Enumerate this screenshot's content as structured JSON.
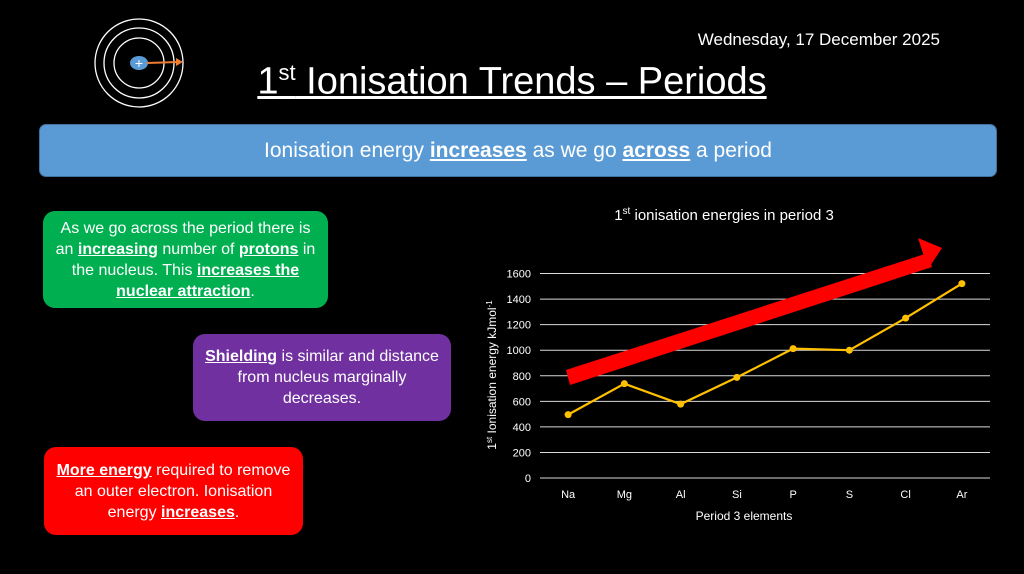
{
  "date": "Wednesday, 17 December 2025",
  "title": {
    "prefix": "1",
    "sup": "st",
    "rest": " Ionisation Trends – Periods"
  },
  "banner": {
    "t1": "Ionisation energy ",
    "b1": "increases",
    "t2": " as we go ",
    "b2": "across",
    "t3": " a period"
  },
  "green_box": {
    "t1": "As we go across the period there is an ",
    "b1": "increasing",
    "t2": " number of ",
    "b2": "protons",
    "t3": " in the nucleus. This ",
    "b3": "increases the nuclear attraction",
    "t4": "."
  },
  "purple_box": {
    "b1": "Shielding",
    "t1": " is similar and distance from nucleus marginally decreases."
  },
  "red_box": {
    "b1": "More energy",
    "t1": " required to remove an outer electron. Ionisation energy ",
    "b2": "increases",
    "t2": "."
  },
  "colors": {
    "banner": "#5b9bd5",
    "green": "#00b050",
    "purple": "#7030a0",
    "red": "#ff0000",
    "line": "#ffc000",
    "arrow": "#ff0000"
  },
  "icons": {
    "atom": "atom-shells-icon"
  },
  "chart_data": {
    "type": "line",
    "title_prefix": "1",
    "title_sup": "st",
    "title_rest": " ionisation energies in period 3",
    "xlabel": "Period 3 elements",
    "ylabel_prefix": "1",
    "ylabel_sup": "st",
    "ylabel_rest": " Ionisation energy kJmol",
    "ylabel_unit_sup": "-1",
    "categories": [
      "Na",
      "Mg",
      "Al",
      "Si",
      "P",
      "S",
      "Cl",
      "Ar"
    ],
    "values": [
      496,
      738,
      578,
      787,
      1012,
      1000,
      1251,
      1521
    ],
    "ylim": [
      0,
      1600
    ],
    "yticks": [
      0,
      200,
      400,
      600,
      800,
      1000,
      1200,
      1400,
      1600
    ],
    "grid": true,
    "legend": "none",
    "annotation": "increasing trend arrow"
  }
}
